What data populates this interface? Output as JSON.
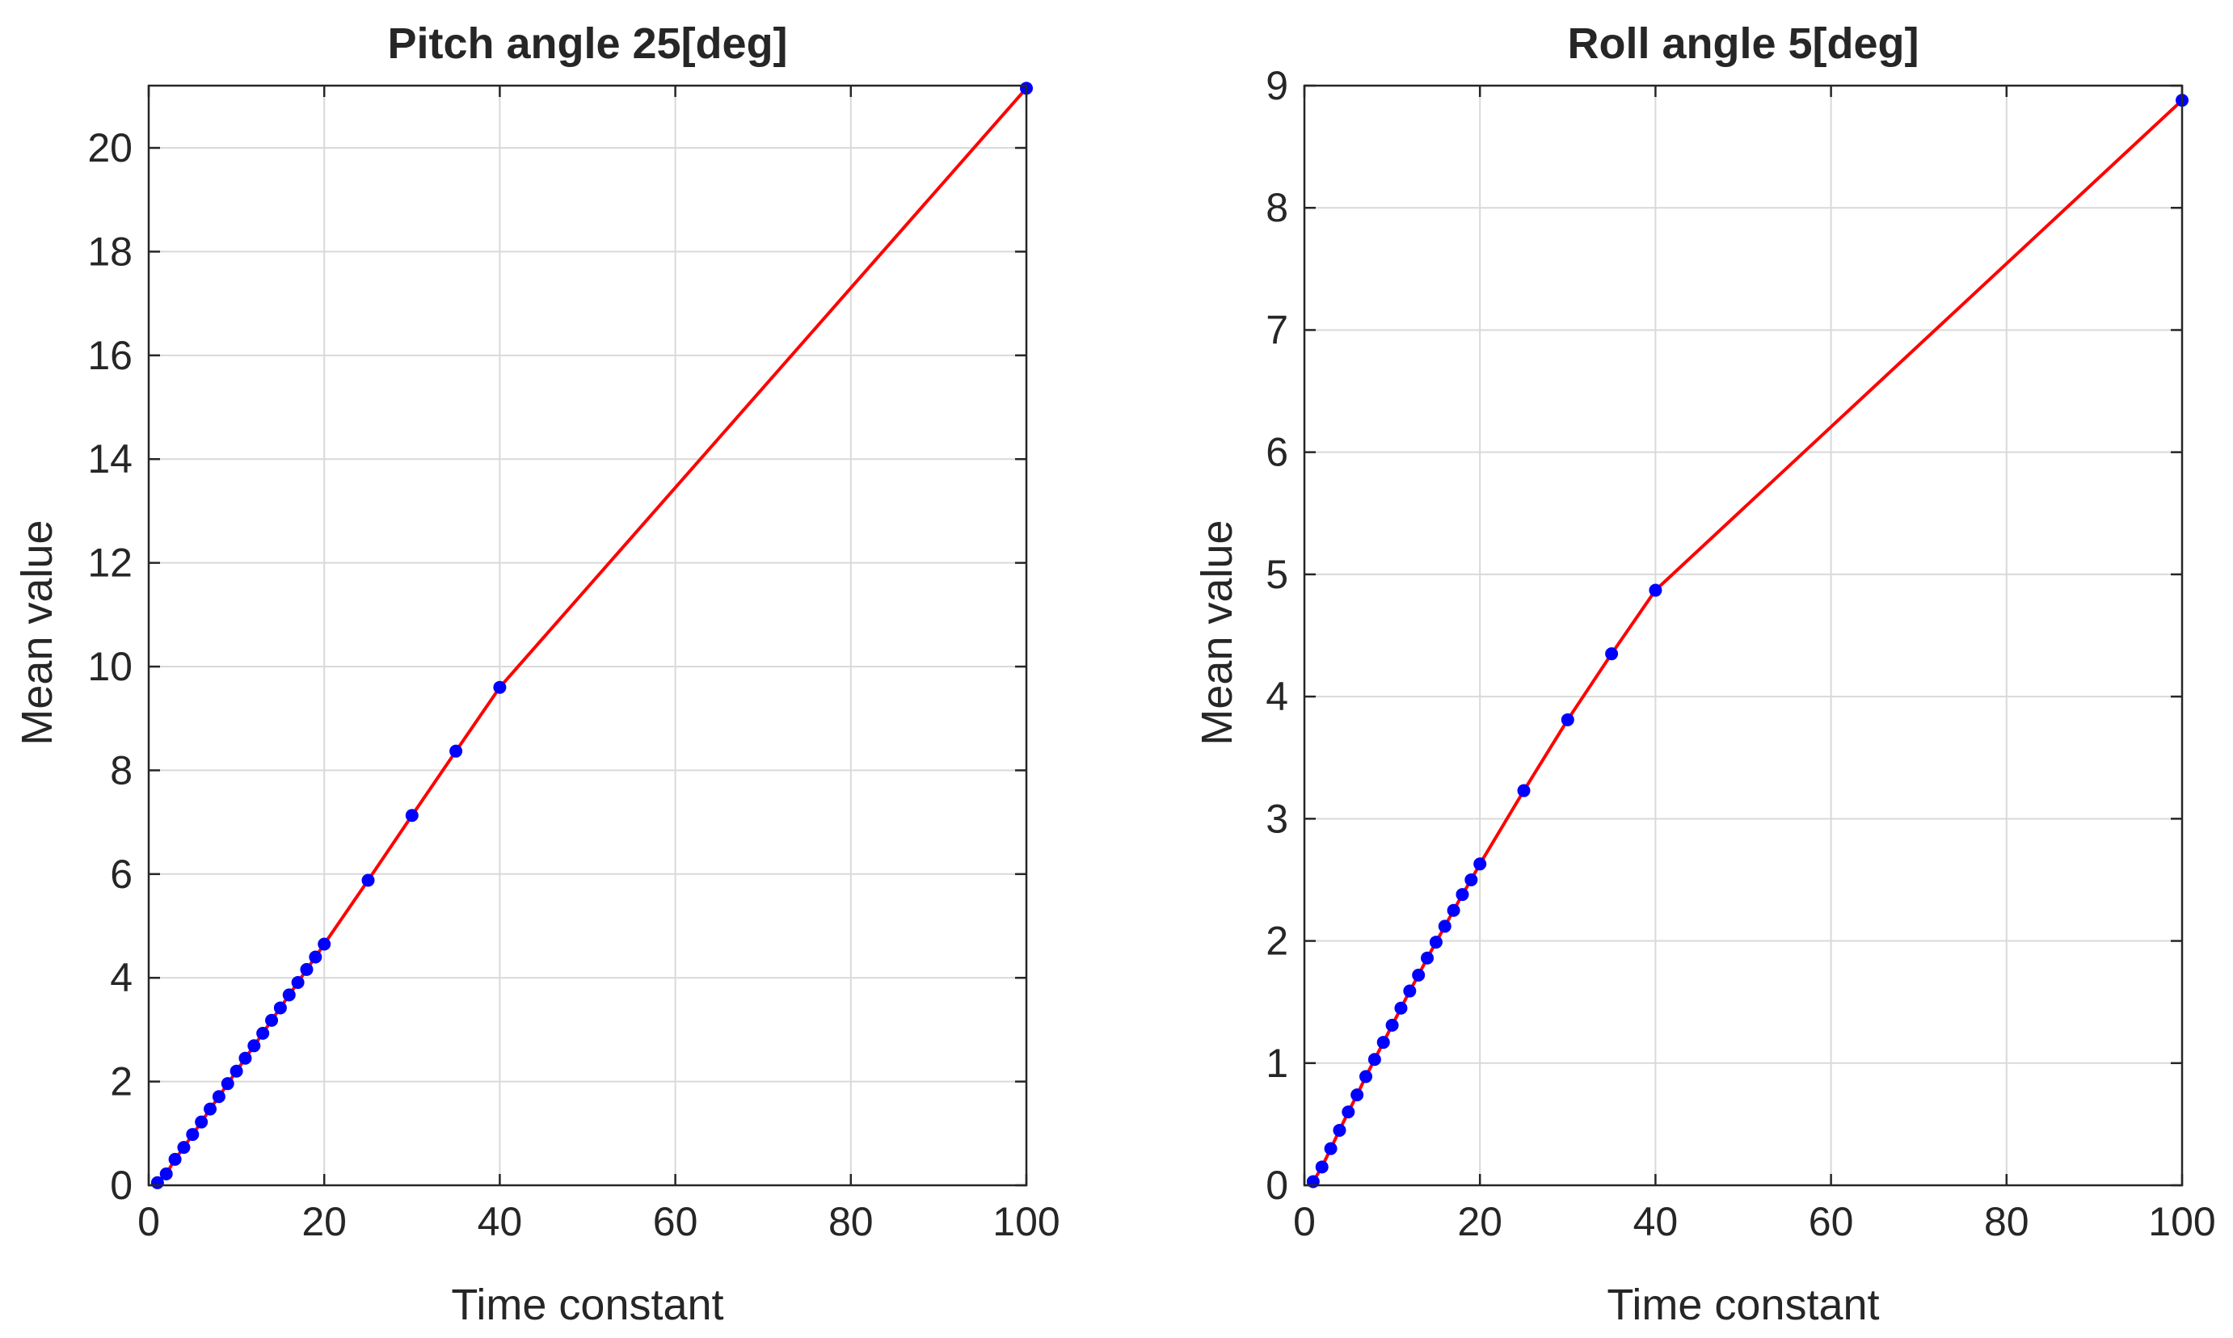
{
  "figure": {
    "background": "#ffffff",
    "line_color": "#ff0000",
    "marker_color": "#0000ff",
    "grid_color": "#d9d9d9",
    "axis_color": "#262626"
  },
  "chart_data": [
    {
      "type": "line",
      "title": "Pitch angle 25[deg]",
      "xlabel": "Time constant",
      "ylabel": "Mean value",
      "xlim": [
        0,
        100
      ],
      "ylim": [
        0,
        21.2
      ],
      "xticks": [
        0,
        20,
        40,
        60,
        80,
        100
      ],
      "yticks": [
        0,
        2,
        4,
        6,
        8,
        10,
        12,
        14,
        16,
        18,
        20
      ],
      "grid": true,
      "series": [
        {
          "name": "Mean value",
          "line": "solid red",
          "marker": "blue dot",
          "x": [
            1,
            2,
            3,
            4,
            5,
            6,
            7,
            8,
            9,
            10,
            11,
            12,
            13,
            14,
            15,
            16,
            17,
            18,
            19,
            20,
            25,
            30,
            35,
            40,
            100
          ],
          "y": [
            0.05,
            0.22,
            0.5,
            0.73,
            0.98,
            1.22,
            1.47,
            1.71,
            1.96,
            2.2,
            2.45,
            2.69,
            2.93,
            3.18,
            3.42,
            3.67,
            3.91,
            4.16,
            4.4,
            4.65,
            5.88,
            7.13,
            8.37,
            9.6,
            21.15
          ]
        }
      ]
    },
    {
      "type": "line",
      "title": "Roll angle 5[deg]",
      "xlabel": "Time constant",
      "ylabel": "Mean value",
      "xlim": [
        0,
        100
      ],
      "ylim": [
        0,
        9
      ],
      "xticks": [
        0,
        20,
        40,
        60,
        80,
        100
      ],
      "yticks": [
        0,
        1,
        2,
        3,
        4,
        5,
        6,
        7,
        8,
        9
      ],
      "grid": true,
      "series": [
        {
          "name": "Mean value",
          "line": "solid red",
          "marker": "blue dot",
          "x": [
            1,
            2,
            3,
            4,
            5,
            6,
            7,
            8,
            9,
            10,
            11,
            12,
            13,
            14,
            15,
            16,
            17,
            18,
            19,
            20,
            25,
            30,
            35,
            40,
            100
          ],
          "y": [
            0.03,
            0.15,
            0.3,
            0.45,
            0.6,
            0.74,
            0.89,
            1.03,
            1.17,
            1.31,
            1.45,
            1.59,
            1.72,
            1.86,
            1.99,
            2.12,
            2.25,
            2.38,
            2.5,
            2.63,
            3.23,
            3.81,
            4.35,
            4.87,
            8.88
          ]
        }
      ]
    }
  ]
}
